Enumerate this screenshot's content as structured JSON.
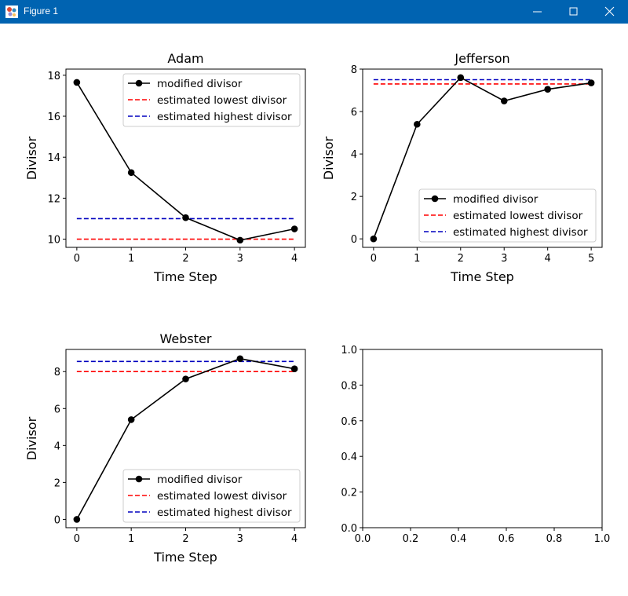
{
  "window": {
    "title": "Figure 1",
    "controls": [
      "minimize-icon",
      "maximize-icon",
      "close-icon"
    ],
    "titlebar_color": "#0063b1"
  },
  "chart_data": [
    {
      "type": "line",
      "title": "Adam",
      "xlabel": "Time Step",
      "ylabel": "Divisor",
      "xlim": [
        -0.2,
        4.2
      ],
      "ylim": [
        9.6,
        18.3
      ],
      "xticks": [
        0,
        1,
        2,
        3,
        4
      ],
      "xtick_labels": [
        "0",
        "1",
        "2",
        "3",
        "4"
      ],
      "yticks": [
        10,
        12,
        14,
        16,
        18
      ],
      "ytick_labels": [
        "10",
        "12",
        "14",
        "16",
        "18"
      ],
      "grid": false,
      "legend_position": "top-right",
      "series": [
        {
          "name": "modified divisor",
          "style": "solid-marker",
          "color": "#000000",
          "x": [
            0,
            1,
            2,
            3,
            4
          ],
          "values": [
            17.65,
            13.25,
            11.05,
            9.95,
            10.5
          ]
        },
        {
          "name": "estimated lowest divisor",
          "style": "dashed",
          "color": "#ff0000",
          "x": [
            0,
            4
          ],
          "values": [
            10.0,
            10.0
          ]
        },
        {
          "name": "estimated highest divisor",
          "style": "dashed",
          "color": "#0000bf",
          "x": [
            0,
            4
          ],
          "values": [
            11.0,
            11.0
          ]
        }
      ]
    },
    {
      "type": "line",
      "title": "Jefferson",
      "xlabel": "Time Step",
      "ylabel": "Divisor",
      "xlim": [
        -0.25,
        5.25
      ],
      "ylim": [
        -0.4,
        8.0
      ],
      "xticks": [
        0,
        1,
        2,
        3,
        4,
        5
      ],
      "xtick_labels": [
        "0",
        "1",
        "2",
        "3",
        "4",
        "5"
      ],
      "yticks": [
        0,
        2,
        4,
        6,
        8
      ],
      "ytick_labels": [
        "0",
        "2",
        "4",
        "6",
        "8"
      ],
      "grid": false,
      "legend_position": "bottom-right",
      "series": [
        {
          "name": "modified divisor",
          "style": "solid-marker",
          "color": "#000000",
          "x": [
            0,
            1,
            2,
            3,
            4,
            5
          ],
          "values": [
            0.0,
            5.4,
            7.6,
            6.5,
            7.05,
            7.35
          ]
        },
        {
          "name": "estimated lowest divisor",
          "style": "dashed",
          "color": "#ff0000",
          "x": [
            0,
            5
          ],
          "values": [
            7.3,
            7.3
          ]
        },
        {
          "name": "estimated highest divisor",
          "style": "dashed",
          "color": "#0000bf",
          "x": [
            0,
            5
          ],
          "values": [
            7.5,
            7.5
          ]
        }
      ]
    },
    {
      "type": "line",
      "title": "Webster",
      "xlabel": "Time Step",
      "ylabel": "Divisor",
      "xlim": [
        -0.2,
        4.2
      ],
      "ylim": [
        -0.45,
        9.2
      ],
      "xticks": [
        0,
        1,
        2,
        3,
        4
      ],
      "xtick_labels": [
        "0",
        "1",
        "2",
        "3",
        "4"
      ],
      "yticks": [
        0,
        2,
        4,
        6,
        8
      ],
      "ytick_labels": [
        "0",
        "2",
        "4",
        "6",
        "8"
      ],
      "grid": false,
      "legend_position": "bottom-right",
      "series": [
        {
          "name": "modified divisor",
          "style": "solid-marker",
          "color": "#000000",
          "x": [
            0,
            1,
            2,
            3,
            4
          ],
          "values": [
            0.0,
            5.4,
            7.6,
            8.7,
            8.15
          ]
        },
        {
          "name": "estimated lowest divisor",
          "style": "dashed",
          "color": "#ff0000",
          "x": [
            0,
            4
          ],
          "values": [
            8.0,
            8.0
          ]
        },
        {
          "name": "estimated highest divisor",
          "style": "dashed",
          "color": "#0000bf",
          "x": [
            0,
            4
          ],
          "values": [
            8.55,
            8.55
          ]
        }
      ]
    },
    {
      "type": "line",
      "title": "",
      "xlabel": "",
      "ylabel": "",
      "xlim": [
        0,
        1
      ],
      "ylim": [
        0,
        1
      ],
      "xticks": [
        0,
        0.2,
        0.4,
        0.6,
        0.8,
        1.0
      ],
      "xtick_labels": [
        "0.0",
        "0.2",
        "0.4",
        "0.6",
        "0.8",
        "1.0"
      ],
      "yticks": [
        0,
        0.2,
        0.4,
        0.6,
        0.8,
        1.0
      ],
      "ytick_labels": [
        "0.0",
        "0.2",
        "0.4",
        "0.6",
        "0.8",
        "1.0"
      ],
      "grid": false,
      "legend_position": "none",
      "series": []
    }
  ]
}
